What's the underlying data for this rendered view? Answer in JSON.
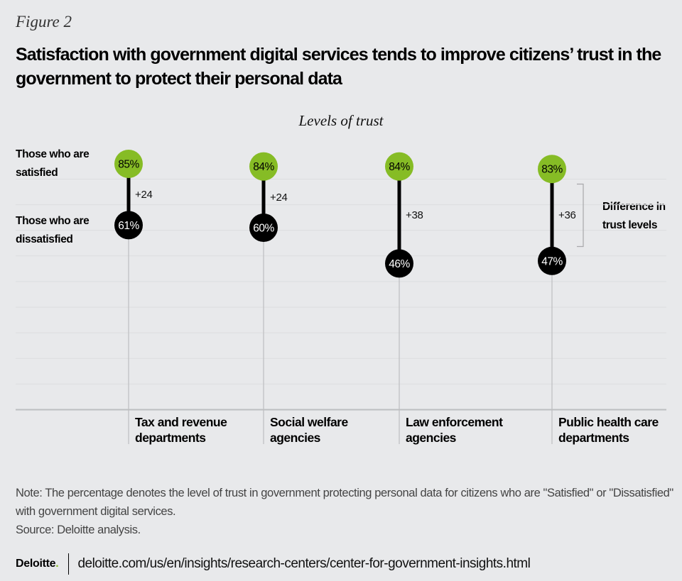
{
  "figure_label": "Figure 2",
  "title": "Satisfaction with government digital services tends to improve citizens’ trust in the government to protect their personal data",
  "row_labels": {
    "satisfied": "Those who are satisfied",
    "dissatisfied": "Those who are dissatisfied"
  },
  "difference_label": "Difference in trust levels",
  "note": "Note: The percentage denotes the level of trust in government protecting personal data for citizens who are \"Satisfied\" or \"Dissatisfied\" with government digital services.",
  "source": "Source: Deloitte analysis.",
  "footer": {
    "logo": "Deloitte",
    "logo_dot": ".",
    "url": "deloitte.com/us/en/insights/research-centers/center-for-government-insights.html"
  },
  "colors": {
    "satisfied": "#86BC25",
    "dissatisfied": "#000000",
    "background": "#E8E9EB",
    "gridline": "#DCDDDF",
    "axis": "#BDBEC0"
  },
  "chart_data": {
    "type": "dot-range",
    "title": "Levels of trust",
    "unit": "%",
    "categories": [
      "Tax and revenue departments",
      "Social welfare agencies",
      "Law enforcement agencies",
      "Public health care departments"
    ],
    "series": [
      {
        "name": "Those who are satisfied",
        "values": [
          85,
          84,
          84,
          83
        ]
      },
      {
        "name": "Those who are dissatisfied",
        "values": [
          61,
          60,
          46,
          47
        ]
      }
    ],
    "differences": [
      "+24",
      "+24",
      "+38",
      "+36"
    ],
    "annotation": "Difference in trust levels",
    "grid": true
  }
}
